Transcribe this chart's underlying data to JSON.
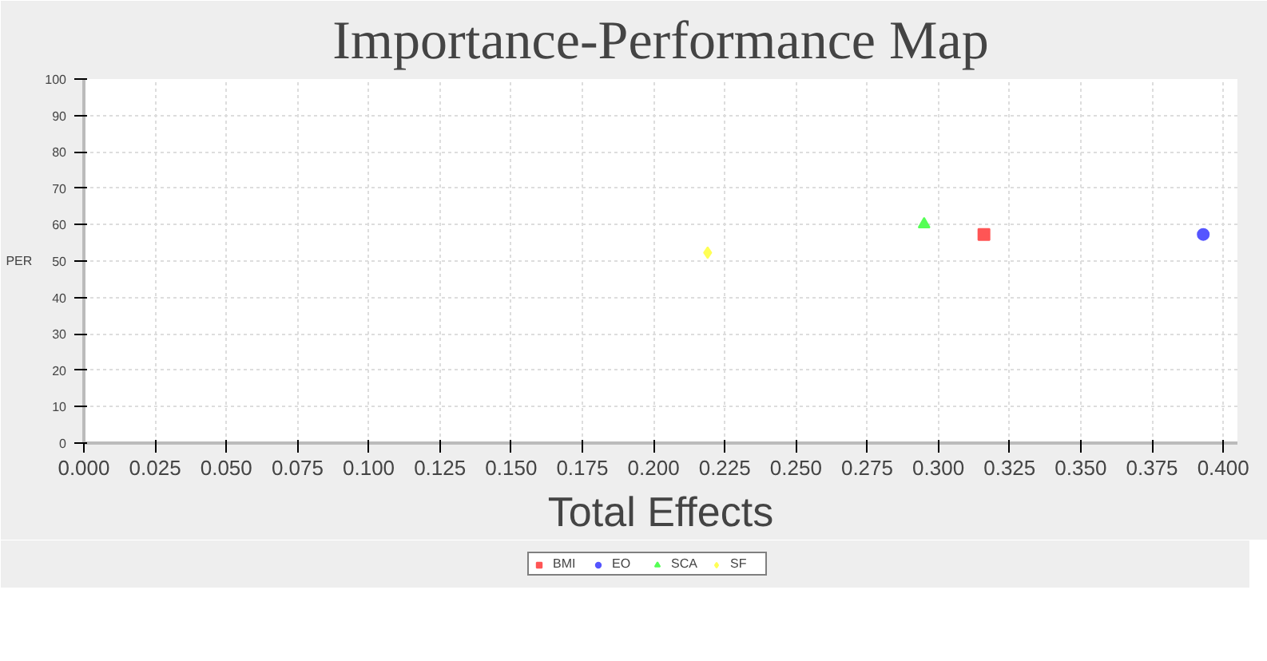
{
  "chart_data": {
    "type": "scatter",
    "title": "Importance-Performance Map",
    "xlabel": "Total Effects",
    "ylabel": "PER",
    "series": [
      {
        "name": "BMI",
        "color": "#ff5555",
        "marker": "square",
        "x": [
          0.316
        ],
        "values": [
          57.3
        ]
      },
      {
        "name": "EO",
        "color": "#5555ff",
        "marker": "circle",
        "x": [
          0.393
        ],
        "values": [
          57.3
        ]
      },
      {
        "name": "SCA",
        "color": "#55ff55",
        "marker": "triangle",
        "x": [
          0.295
        ],
        "values": [
          60.1
        ]
      },
      {
        "name": "SF",
        "color": "#ffff55",
        "marker": "diamond",
        "x": [
          0.219
        ],
        "values": [
          52.3
        ]
      }
    ],
    "xlim": [
      0,
      0.405
    ],
    "ylim": [
      0,
      100
    ],
    "xticks": [
      {
        "value": 0,
        "label": "0.000"
      },
      {
        "value": 0.025,
        "label": "0.025"
      },
      {
        "value": 0.05,
        "label": "0.050"
      },
      {
        "value": 0.075,
        "label": "0.075"
      },
      {
        "value": 0.1,
        "label": "0.100"
      },
      {
        "value": 0.125,
        "label": "0.125"
      },
      {
        "value": 0.15,
        "label": "0.150"
      },
      {
        "value": 0.175,
        "label": "0.175"
      },
      {
        "value": 0.2,
        "label": "0.200"
      },
      {
        "value": 0.225,
        "label": "0.225"
      },
      {
        "value": 0.25,
        "label": "0.250"
      },
      {
        "value": 0.275,
        "label": "0.275"
      },
      {
        "value": 0.3,
        "label": "0.300"
      },
      {
        "value": 0.325,
        "label": "0.325"
      },
      {
        "value": 0.35,
        "label": "0.350"
      },
      {
        "value": 0.375,
        "label": "0.375"
      },
      {
        "value": 0.4,
        "label": "0.400"
      }
    ],
    "yticks": [
      0,
      10,
      20,
      30,
      40,
      50,
      60,
      70,
      80,
      90,
      100
    ],
    "grid": true,
    "legend": "bottom"
  }
}
